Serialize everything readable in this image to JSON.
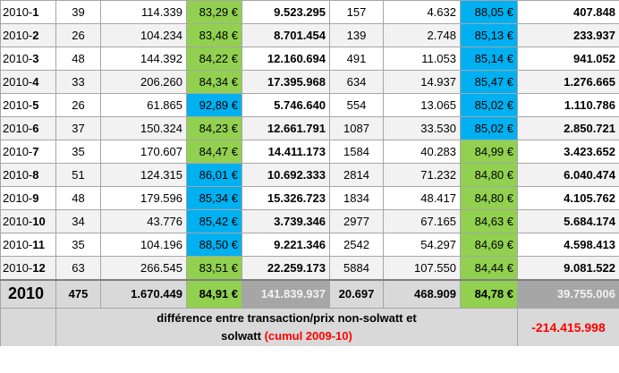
{
  "rows": [
    {
      "year": "2010-",
      "month": "1",
      "n1": "39",
      "v1": "114.339",
      "p1": "83,29 €",
      "c1": "green",
      "t1": "9.523.295",
      "n2": "157",
      "v2": "4.632",
      "p2": "88,05 €",
      "c2": "blue",
      "t2": "407.848"
    },
    {
      "year": "2010-",
      "month": "2",
      "n1": "26",
      "v1": "104.234",
      "p1": "83,48 €",
      "c1": "green",
      "t1": "8.701.454",
      "n2": "139",
      "v2": "2.748",
      "p2": "85,13 €",
      "c2": "blue",
      "t2": "233.937"
    },
    {
      "year": "2010-",
      "month": "3",
      "n1": "48",
      "v1": "144.392",
      "p1": "84,22 €",
      "c1": "green",
      "t1": "12.160.694",
      "n2": "491",
      "v2": "11.053",
      "p2": "85,14 €",
      "c2": "blue",
      "t2": "941.052"
    },
    {
      "year": "2010-",
      "month": "4",
      "n1": "33",
      "v1": "206.260",
      "p1": "84,34 €",
      "c1": "green",
      "t1": "17.395.968",
      "n2": "634",
      "v2": "14.937",
      "p2": "85,47 €",
      "c2": "blue",
      "t2": "1.276.665"
    },
    {
      "year": "2010-",
      "month": "5",
      "n1": "26",
      "v1": "61.865",
      "p1": "92,89 €",
      "c1": "blue",
      "t1": "5.746.640",
      "n2": "554",
      "v2": "13.065",
      "p2": "85,02 €",
      "c2": "blue",
      "t2": "1.110.786"
    },
    {
      "year": "2010-",
      "month": "6",
      "n1": "37",
      "v1": "150.324",
      "p1": "84,23 €",
      "c1": "green",
      "t1": "12.661.791",
      "n2": "1087",
      "v2": "33.530",
      "p2": "85,02 €",
      "c2": "blue",
      "t2": "2.850.721"
    },
    {
      "year": "2010-",
      "month": "7",
      "n1": "35",
      "v1": "170.607",
      "p1": "84,47 €",
      "c1": "green",
      "t1": "14.411.173",
      "n2": "1584",
      "v2": "40.283",
      "p2": "84,99 €",
      "c2": "green",
      "t2": "3.423.652"
    },
    {
      "year": "2010-",
      "month": "8",
      "n1": "51",
      "v1": "124.315",
      "p1": "86,01 €",
      "c1": "blue",
      "t1": "10.692.333",
      "n2": "2814",
      "v2": "71.232",
      "p2": "84,80 €",
      "c2": "green",
      "t2": "6.040.474"
    },
    {
      "year": "2010-",
      "month": "9",
      "n1": "48",
      "v1": "179.596",
      "p1": "85,34 €",
      "c1": "blue",
      "t1": "15.326.723",
      "n2": "1834",
      "v2": "48.417",
      "p2": "84,80 €",
      "c2": "green",
      "t2": "4.105.762"
    },
    {
      "year": "2010-",
      "month": "10",
      "n1": "34",
      "v1": "43.776",
      "p1": "85,42 €",
      "c1": "blue",
      "t1": "3.739.346",
      "n2": "2977",
      "v2": "67.165",
      "p2": "84,63 €",
      "c2": "green",
      "t2": "5.684.174"
    },
    {
      "year": "2010-",
      "month": "11",
      "n1": "35",
      "v1": "104.196",
      "p1": "88,50 €",
      "c1": "blue",
      "t1": "9.221.346",
      "n2": "2542",
      "v2": "54.297",
      "p2": "84,69 €",
      "c2": "green",
      "t2": "4.598.413"
    },
    {
      "year": "2010-",
      "month": "12",
      "n1": "63",
      "v1": "266.545",
      "p1": "83,51 €",
      "c1": "green",
      "t1": "22.259.173",
      "n2": "5884",
      "v2": "107.550",
      "p2": "84,44 €",
      "c2": "green",
      "t2": "9.081.522"
    }
  ],
  "total": {
    "year": "2010",
    "n1": "475",
    "v1": "1.670.449",
    "p1": "84,91 €",
    "t1": "141.839.937",
    "n2": "20.697",
    "v2": "468.909",
    "p2": "84,78 €",
    "t2": "39.755.006"
  },
  "diff": {
    "line1": "différence entre transaction/prix non-solwatt et",
    "line2_prefix": "solwatt ",
    "line2_red": "(cumul 2009-10)",
    "value": "-214.415.998"
  },
  "colors": {
    "green": "#92d050",
    "blue": "#00b0f0",
    "gray": "#d9d9d9",
    "alt": "#f2f2f2",
    "red": "#ff0000"
  }
}
